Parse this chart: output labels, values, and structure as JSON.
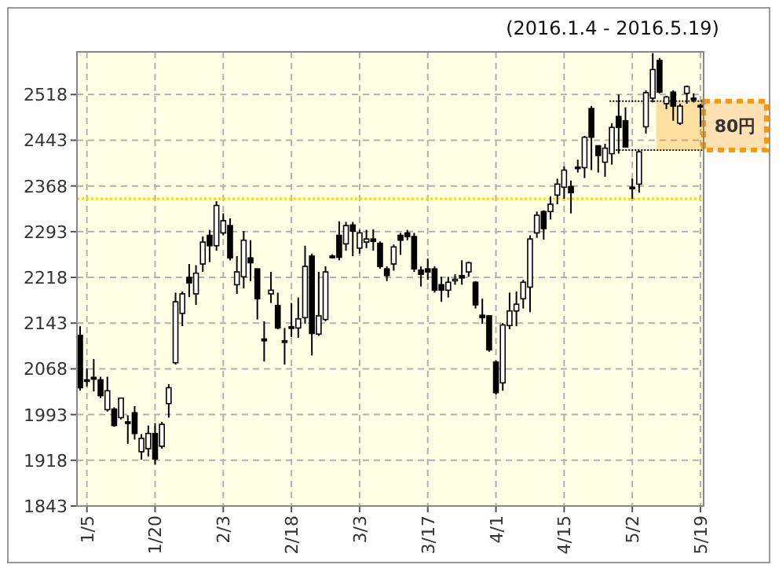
{
  "chart_data": {
    "type": "candlestick",
    "title": "(2016.1.4 - 2016.5.19)",
    "categories": [
      null,
      "1/5",
      null,
      null,
      null,
      null,
      null,
      null,
      null,
      null,
      null,
      "1/20",
      null,
      null,
      null,
      null,
      null,
      null,
      null,
      null,
      null,
      "2/3",
      null,
      null,
      null,
      null,
      null,
      null,
      null,
      null,
      null,
      "2/18",
      null,
      null,
      null,
      null,
      null,
      null,
      null,
      null,
      null,
      "3/3",
      null,
      null,
      null,
      null,
      null,
      null,
      null,
      null,
      null,
      "3/17",
      null,
      null,
      null,
      null,
      null,
      null,
      null,
      null,
      null,
      "4/1",
      null,
      null,
      null,
      null,
      null,
      null,
      null,
      null,
      null,
      "4/15",
      null,
      null,
      null,
      null,
      null,
      null,
      null,
      null,
      null,
      "5/2",
      null,
      null,
      null,
      null,
      null,
      null,
      null,
      null,
      null,
      "5/19"
    ],
    "ohlc": [
      [
        2123,
        2138,
        2032,
        2037
      ],
      [
        2050,
        2069,
        2039,
        2048
      ],
      [
        2054,
        2084,
        2031,
        2051
      ],
      [
        2050,
        2055,
        2020,
        2024
      ],
      [
        2001,
        2055,
        1998,
        2032
      ],
      [
        2002,
        2005,
        1973,
        1975
      ],
      [
        1988,
        2020,
        1985,
        2020
      ],
      [
        1981,
        1992,
        1945,
        1979
      ],
      [
        1996,
        2007,
        1952,
        1962
      ],
      [
        1932,
        1961,
        1919,
        1954
      ],
      [
        1937,
        1975,
        1924,
        1962
      ],
      [
        1962,
        1979,
        1911,
        1920
      ],
      [
        1941,
        1981,
        1937,
        1977
      ],
      [
        2011,
        2043,
        1988,
        2037
      ],
      [
        2078,
        2193,
        2075,
        2178
      ],
      [
        2159,
        2195,
        2138,
        2191
      ],
      [
        2218,
        2240,
        2186,
        2209
      ],
      [
        2191,
        2238,
        2173,
        2225
      ],
      [
        2240,
        2285,
        2227,
        2276
      ],
      [
        2287,
        2296,
        2243,
        2270
      ],
      [
        2270,
        2343,
        2262,
        2336
      ],
      [
        2291,
        2323,
        2287,
        2311
      ],
      [
        2303,
        2315,
        2246,
        2250
      ],
      [
        2206,
        2253,
        2191,
        2227
      ],
      [
        2219,
        2294,
        2200,
        2279
      ],
      [
        2250,
        2279,
        2212,
        2242
      ],
      [
        2232,
        2232,
        2149,
        2183
      ],
      [
        2117,
        2146,
        2080,
        2114
      ],
      [
        2191,
        2227,
        2176,
        2197
      ],
      [
        2172,
        2193,
        2133,
        2135
      ],
      [
        2114,
        2135,
        2075,
        2112
      ],
      [
        2137,
        2176,
        2120,
        2135
      ],
      [
        2135,
        2185,
        2119,
        2150
      ],
      [
        2152,
        2270,
        2142,
        2236
      ],
      [
        2253,
        2257,
        2090,
        2126
      ],
      [
        2125,
        2227,
        2122,
        2155
      ],
      [
        2149,
        2236,
        2146,
        2227
      ],
      [
        2253,
        2256,
        2249,
        2251
      ],
      [
        2287,
        2310,
        2246,
        2251
      ],
      [
        2273,
        2309,
        2262,
        2303
      ],
      [
        2304,
        2309,
        2253,
        2294
      ],
      [
        2266,
        2296,
        2257,
        2291
      ],
      [
        2276,
        2296,
        2266,
        2281
      ],
      [
        2281,
        2297,
        2262,
        2277
      ],
      [
        2274,
        2277,
        2232,
        2236
      ],
      [
        2232,
        2236,
        2212,
        2221
      ],
      [
        2240,
        2272,
        2229,
        2268
      ],
      [
        2287,
        2291,
        2255,
        2279
      ],
      [
        2291,
        2296,
        2279,
        2285
      ],
      [
        2285,
        2291,
        2227,
        2232
      ],
      [
        2230,
        2236,
        2203,
        2223
      ],
      [
        2232,
        2249,
        2214,
        2227
      ],
      [
        2232,
        2236,
        2193,
        2197
      ],
      [
        2206,
        2219,
        2178,
        2197
      ],
      [
        2197,
        2219,
        2185,
        2210
      ],
      [
        2214,
        2223,
        2206,
        2215
      ],
      [
        2221,
        2246,
        2206,
        2217
      ],
      [
        2227,
        2244,
        2219,
        2242
      ],
      [
        2210,
        2212,
        2167,
        2173
      ],
      [
        2156,
        2183,
        2142,
        2152
      ],
      [
        2155,
        2156,
        2096,
        2099
      ],
      [
        2079,
        2082,
        2026,
        2029
      ],
      [
        2045,
        2143,
        2032,
        2140
      ],
      [
        2139,
        2193,
        2133,
        2163
      ],
      [
        2163,
        2195,
        2138,
        2174
      ],
      [
        2183,
        2214,
        2167,
        2210
      ],
      [
        2202,
        2287,
        2161,
        2281
      ],
      [
        2291,
        2326,
        2283,
        2320
      ],
      [
        2326,
        2328,
        2280,
        2298
      ],
      [
        2326,
        2351,
        2313,
        2338
      ],
      [
        2353,
        2380,
        2338,
        2371
      ],
      [
        2366,
        2400,
        2347,
        2394
      ],
      [
        2367,
        2377,
        2323,
        2357
      ],
      [
        2399,
        2411,
        2390,
        2398
      ],
      [
        2398,
        2450,
        2381,
        2448
      ],
      [
        2495,
        2499,
        2394,
        2448
      ],
      [
        2434,
        2434,
        2390,
        2418
      ],
      [
        2407,
        2437,
        2383,
        2430
      ],
      [
        2421,
        2471,
        2403,
        2464
      ],
      [
        2482,
        2518,
        2421,
        2464
      ],
      [
        2475,
        2497,
        2432,
        2432
      ],
      [
        2366,
        2380,
        2347,
        2365
      ],
      [
        2371,
        2426,
        2357,
        2424
      ],
      [
        2465,
        2525,
        2454,
        2521
      ],
      [
        2512,
        2586,
        2505,
        2559
      ],
      [
        2574,
        2578,
        2520,
        2522
      ],
      [
        2503,
        2516,
        2494,
        2514
      ],
      [
        2522,
        2525,
        2475,
        2499
      ],
      [
        2471,
        2503,
        2468,
        2499
      ],
      [
        2520,
        2533,
        2503,
        2531
      ],
      [
        2512,
        2520,
        2505,
        2510
      ],
      [
        2500,
        2503,
        2465,
        2498
      ]
    ],
    "ylim": [
      1843,
      2588
    ],
    "yticks": [
      1843,
      1918,
      1993,
      2068,
      2143,
      2218,
      2293,
      2368,
      2443,
      2518
    ],
    "grid": true,
    "ref_lines": [
      {
        "axis": "y",
        "value": 2347,
        "color": "#ffd700",
        "line_style": "dotted"
      }
    ],
    "bands": [
      {
        "axis": "y",
        "from": 2427,
        "to": 2507,
        "label": "80円",
        "color": "#ff9900"
      }
    ]
  }
}
